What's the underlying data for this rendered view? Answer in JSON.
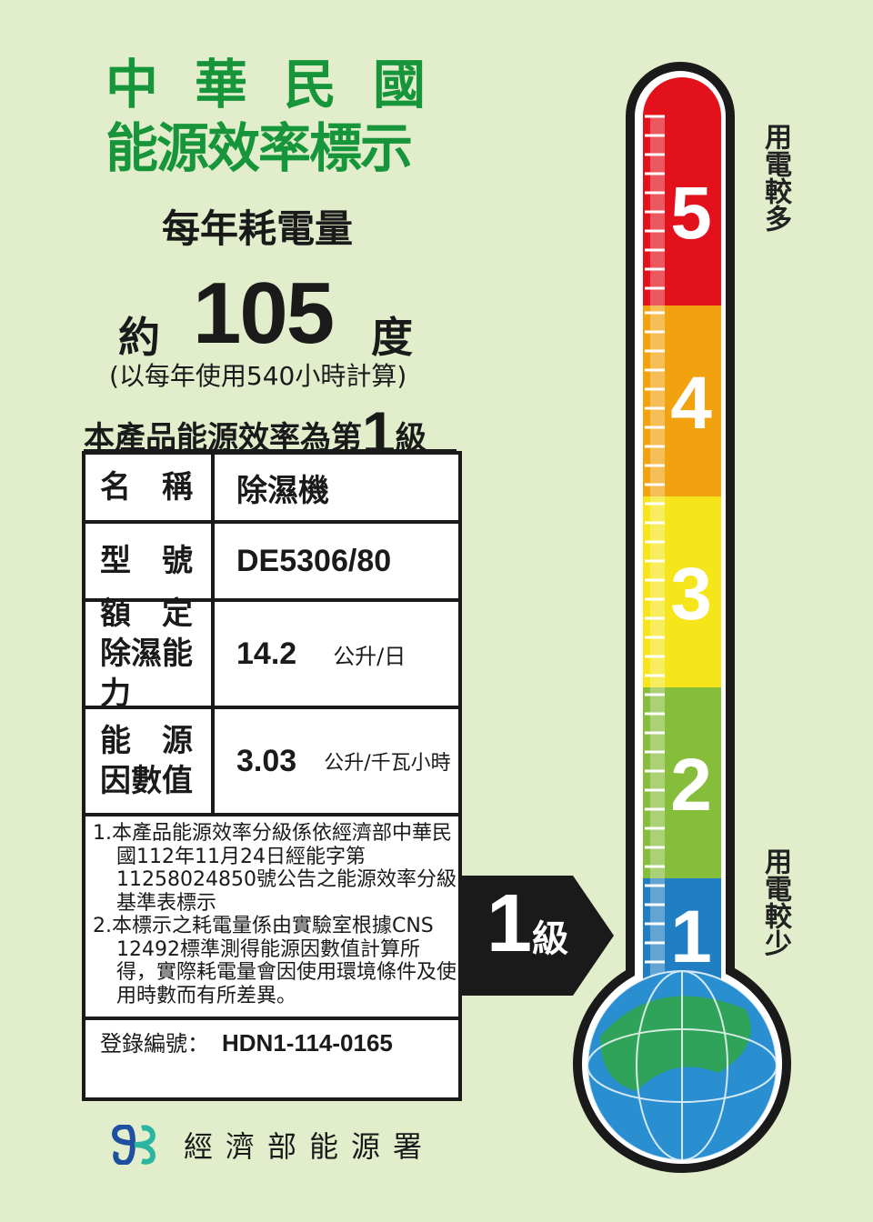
{
  "header": {
    "country": "中華民國",
    "title": "能源效率標示",
    "subtitle": "每年耗電量"
  },
  "consumption": {
    "prefix": "約",
    "value": "105",
    "unit": "度",
    "basis": "(以每年使用540小時計算)"
  },
  "grade_statement": {
    "text": "本產品能源效率為第",
    "grade": "1",
    "suffix": "級"
  },
  "table": {
    "rows": [
      {
        "label": "名　稱",
        "value": "除濕機"
      },
      {
        "label": "型　號",
        "value": "DE5306/80"
      },
      {
        "label_lines": [
          "額　定",
          "除濕能力"
        ],
        "value": "14.2",
        "unit": "公升/日"
      },
      {
        "label_lines": [
          "能　源",
          "因數值"
        ],
        "value": "3.03",
        "unit": "公升/千瓦小時"
      }
    ],
    "notes": [
      "1.本產品能源效率分級係依經濟部中華民國112年11月24日經能字第11258024850號公告之能源效率分級基準表標示",
      "2.本標示之耗電量係由實驗室根據CNS 12492標準測得能源因數值計算所得，實際耗電量會因使用環境條件及使用時數而有所差異。"
    ],
    "registration_label": "登錄編號：",
    "registration_number": "HDN1-114-0165"
  },
  "thermometer": {
    "levels": [
      {
        "grade": "5",
        "color": "#e3111b"
      },
      {
        "grade": "4",
        "color": "#f2a20f"
      },
      {
        "grade": "3",
        "color": "#f5e51a"
      },
      {
        "grade": "2",
        "color": "#86bd3b"
      },
      {
        "grade": "1",
        "color": "#1f7fc2"
      }
    ],
    "top_label": "用電較多",
    "bottom_label": "用電較少",
    "current_grade": "1",
    "current_suffix": "級"
  },
  "footer": {
    "agency": "經濟部能源署",
    "logo_colors": [
      "#1f4fa0",
      "#2cb5a0"
    ]
  },
  "colors": {
    "background": "#e2eecb",
    "title_green": "#17953a"
  }
}
